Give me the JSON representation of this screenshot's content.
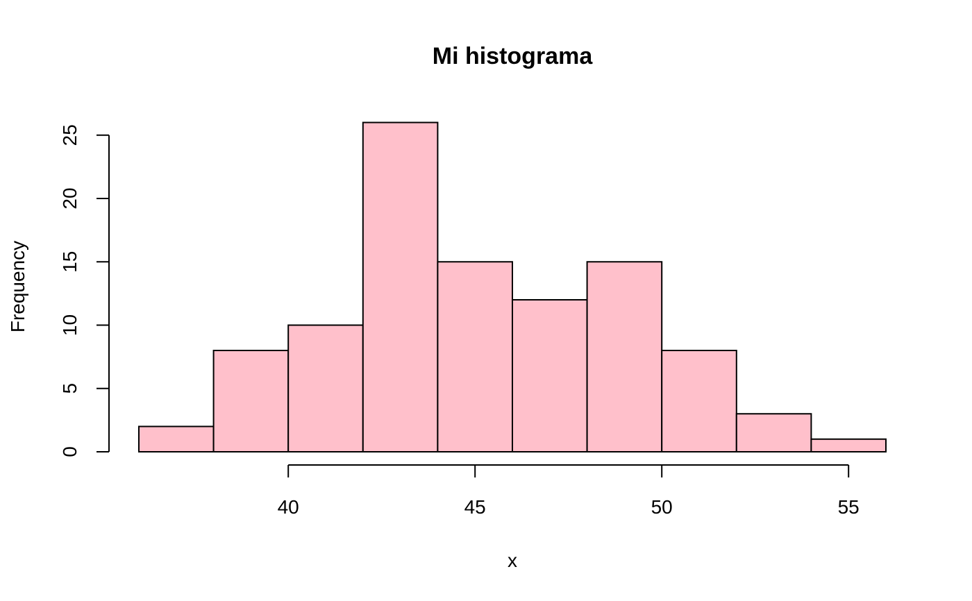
{
  "chart_data": {
    "type": "bar",
    "subtype": "histogram",
    "title": "Mi histograma",
    "xlabel": "x",
    "ylabel": "Frequency",
    "bins": [
      {
        "start": 36,
        "end": 38,
        "count": 2
      },
      {
        "start": 38,
        "end": 40,
        "count": 8
      },
      {
        "start": 40,
        "end": 42,
        "count": 10
      },
      {
        "start": 42,
        "end": 44,
        "count": 26
      },
      {
        "start": 44,
        "end": 46,
        "count": 15
      },
      {
        "start": 46,
        "end": 48,
        "count": 12
      },
      {
        "start": 48,
        "end": 50,
        "count": 15
      },
      {
        "start": 50,
        "end": 52,
        "count": 8
      },
      {
        "start": 52,
        "end": 54,
        "count": 3
      },
      {
        "start": 54,
        "end": 56,
        "count": 1
      }
    ],
    "xticks": [
      "40",
      "45",
      "50",
      "55"
    ],
    "yticks": [
      "0",
      "5",
      "10",
      "15",
      "20",
      "25"
    ],
    "xlim": [
      36,
      56
    ],
    "ylim": [
      0,
      26
    ],
    "grid": false,
    "bar_color": "#FFC0CB",
    "border_color": "#000000"
  }
}
